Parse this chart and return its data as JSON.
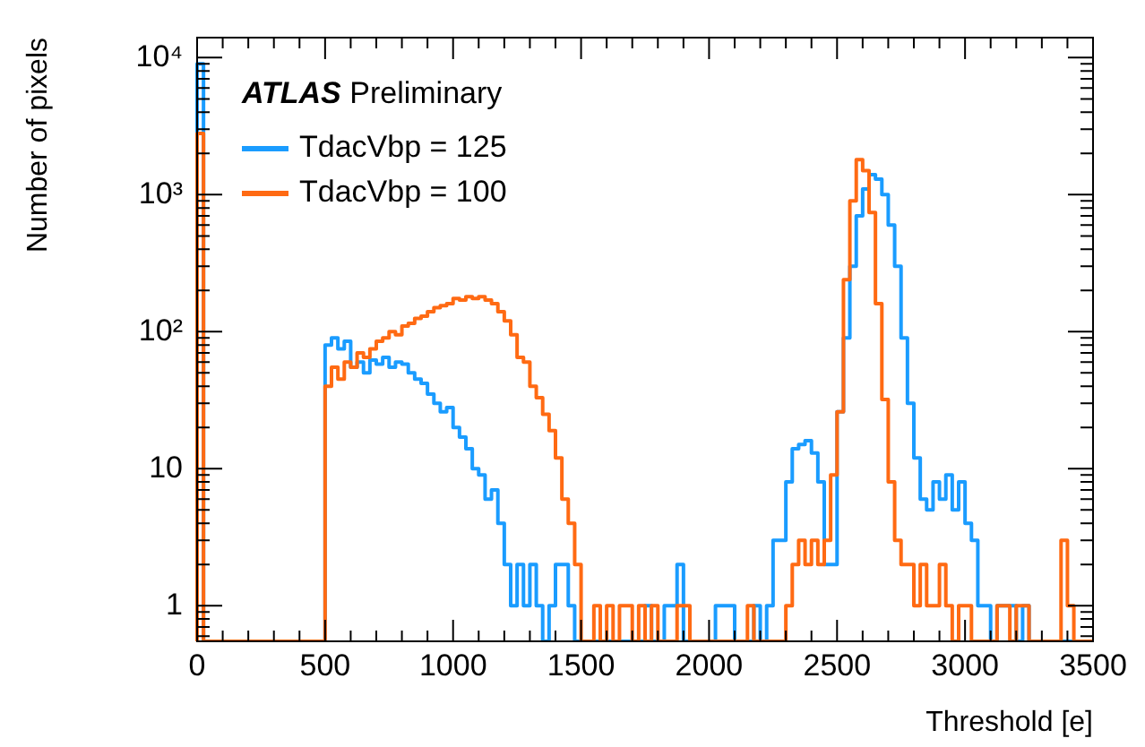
{
  "chart_data": {
    "type": "histogram",
    "xlabel": "Threshold [e]",
    "ylabel": "Number of pixels",
    "annotations": [
      "ATLAS Preliminary"
    ],
    "bins": [
      0,
      25,
      50,
      75,
      100,
      125,
      150,
      175,
      200,
      225,
      250,
      275,
      300,
      325,
      350,
      375,
      400,
      425,
      450,
      475,
      500,
      525,
      550,
      575,
      600,
      625,
      650,
      675,
      700,
      725,
      750,
      775,
      800,
      825,
      850,
      875,
      900,
      925,
      950,
      975,
      1000,
      1025,
      1050,
      1075,
      1100,
      1125,
      1150,
      1175,
      1200,
      1225,
      1250,
      1275,
      1300,
      1325,
      1350,
      1375,
      1400,
      1425,
      1450,
      1475,
      1500,
      1525,
      1550,
      1575,
      1600,
      1625,
      1650,
      1675,
      1700,
      1725,
      1750,
      1775,
      1800,
      1825,
      1850,
      1875,
      1900,
      1925,
      1950,
      1975,
      2000,
      2025,
      2050,
      2075,
      2100,
      2125,
      2150,
      2175,
      2200,
      2225,
      2250,
      2275,
      2300,
      2325,
      2350,
      2375,
      2400,
      2425,
      2450,
      2475,
      2500,
      2525,
      2550,
      2575,
      2600,
      2625,
      2650,
      2675,
      2700,
      2725,
      2750,
      2775,
      2800,
      2825,
      2850,
      2875,
      2900,
      2925,
      2950,
      2975,
      3000,
      3025,
      3050,
      3075,
      3100,
      3125,
      3150,
      3175,
      3200,
      3225,
      3250,
      3275,
      3300,
      3325,
      3350,
      3375,
      3400,
      3425,
      3450,
      3475,
      3500
    ],
    "series": [
      {
        "name": "TdacVbp = 125",
        "color": "#1a9cff",
        "values": [
          9000,
          null,
          null,
          null,
          null,
          null,
          null,
          null,
          null,
          null,
          null,
          null,
          null,
          null,
          null,
          null,
          null,
          null,
          null,
          null,
          80,
          90,
          75,
          85,
          55,
          60,
          50,
          62,
          58,
          65,
          55,
          60,
          58,
          50,
          45,
          42,
          35,
          30,
          26,
          28,
          20,
          17,
          14,
          10,
          9,
          6,
          7,
          4,
          2,
          1,
          2,
          1,
          2,
          1,
          null,
          1,
          2,
          2,
          1,
          null,
          null,
          null,
          null,
          null,
          null,
          null,
          null,
          null,
          null,
          null,
          1,
          null,
          null,
          1,
          1,
          2,
          null,
          null,
          null,
          null,
          null,
          1,
          1,
          1,
          null,
          null,
          null,
          1,
          null,
          1,
          3,
          3,
          8,
          14,
          15,
          16,
          13,
          8,
          2,
          2,
          26,
          90,
          300,
          700,
          1100,
          1400,
          1300,
          1000,
          600,
          300,
          90,
          30,
          12,
          6,
          5,
          8,
          6,
          9,
          5,
          8,
          4,
          3,
          1,
          1,
          null,
          1,
          1,
          1,
          null,
          1,
          null,
          null,
          null,
          null,
          null,
          null,
          null,
          null,
          null,
          null
        ]
      },
      {
        "name": "TdacVbp = 100",
        "color": "#ff6a13",
        "values": [
          2800,
          null,
          null,
          null,
          null,
          null,
          null,
          null,
          null,
          null,
          null,
          null,
          null,
          null,
          null,
          null,
          null,
          null,
          null,
          null,
          40,
          55,
          45,
          60,
          55,
          70,
          65,
          75,
          85,
          90,
          100,
          95,
          110,
          115,
          125,
          130,
          140,
          150,
          155,
          160,
          175,
          170,
          180,
          175,
          180,
          170,
          160,
          140,
          120,
          95,
          65,
          60,
          40,
          33,
          25,
          19,
          12,
          6,
          4,
          2,
          null,
          null,
          1,
          null,
          1,
          null,
          1,
          1,
          null,
          1,
          null,
          1,
          null,
          null,
          null,
          1,
          1,
          null,
          null,
          null,
          null,
          null,
          null,
          null,
          null,
          null,
          1,
          null,
          null,
          null,
          null,
          null,
          1,
          2,
          3,
          2,
          3,
          2,
          3,
          9,
          26,
          240,
          900,
          1800,
          1500,
          740,
          160,
          32,
          8,
          3,
          2,
          2,
          1,
          2,
          1,
          1,
          2,
          1,
          null,
          1,
          1,
          null,
          null,
          null,
          null,
          1,
          1,
          null,
          1,
          1,
          null,
          null,
          null,
          null,
          null,
          3,
          1,
          null,
          null,
          null
        ]
      }
    ],
    "log": "y",
    "xlim": [
      0,
      3500
    ],
    "ylim": [
      0.55,
      14000
    ],
    "xticks": [
      0,
      {
        "value": 100,
        "label": null
      },
      {
        "value": 200,
        "label": null
      },
      {
        "value": 300,
        "label": null
      },
      {
        "value": 400,
        "label": null
      },
      500,
      {
        "value": 600,
        "label": null
      },
      {
        "value": 700,
        "label": null
      },
      {
        "value": 800,
        "label": null
      },
      {
        "value": 900,
        "label": null
      },
      1000,
      {
        "value": 1100,
        "label": null
      },
      {
        "value": 1200,
        "label": null
      },
      {
        "value": 1300,
        "label": null
      },
      {
        "value": 1400,
        "label": null
      },
      1500,
      {
        "value": 1600,
        "label": null
      },
      {
        "value": 1700,
        "label": null
      },
      {
        "value": 1800,
        "label": null
      },
      {
        "value": 1900,
        "label": null
      },
      2000,
      {
        "value": 2100,
        "label": null
      },
      {
        "value": 2200,
        "label": null
      },
      {
        "value": 2300,
        "label": null
      },
      {
        "value": 2400,
        "label": null
      },
      2500,
      {
        "value": 2600,
        "label": null
      },
      {
        "value": 2700,
        "label": null
      },
      {
        "value": 2800,
        "label": null
      },
      {
        "value": 2900,
        "label": null
      },
      3000,
      {
        "value": 3100,
        "label": null
      },
      {
        "value": 3200,
        "label": null
      },
      {
        "value": 3300,
        "label": null
      },
      {
        "value": 3400,
        "label": null
      },
      3500
    ],
    "yticks": [
      {
        "value": 0.6,
        "label": null
      },
      {
        "value": 0.7,
        "label": null
      },
      {
        "value": 0.8,
        "label": null
      },
      {
        "value": 0.9,
        "label": null
      },
      1,
      {
        "value": 2,
        "label": null
      },
      {
        "value": 3,
        "label": null
      },
      {
        "value": 4,
        "label": null
      },
      {
        "value": 5,
        "label": null
      },
      {
        "value": 6,
        "label": null
      },
      {
        "value": 7,
        "label": null
      },
      {
        "value": 8,
        "label": null
      },
      {
        "value": 9,
        "label": null
      },
      10,
      {
        "value": 20,
        "label": null
      },
      {
        "value": 30,
        "label": null
      },
      {
        "value": 40,
        "label": null
      },
      {
        "value": 50,
        "label": null
      },
      {
        "value": 60,
        "label": null
      },
      {
        "value": 70,
        "label": null
      },
      {
        "value": 80,
        "label": null
      },
      {
        "value": 90,
        "label": null
      },
      {
        "value": 100,
        "label": "10²"
      },
      {
        "value": 200,
        "label": null
      },
      {
        "value": 300,
        "label": null
      },
      {
        "value": 400,
        "label": null
      },
      {
        "value": 500,
        "label": null
      },
      {
        "value": 600,
        "label": null
      },
      {
        "value": 700,
        "label": null
      },
      {
        "value": 800,
        "label": null
      },
      {
        "value": 900,
        "label": null
      },
      {
        "value": 1000,
        "label": "10³"
      },
      {
        "value": 2000,
        "label": null
      },
      {
        "value": 3000,
        "label": null
      },
      {
        "value": 4000,
        "label": null
      },
      {
        "value": 5000,
        "label": null
      },
      {
        "value": 6000,
        "label": null
      },
      {
        "value": 7000,
        "label": null
      },
      {
        "value": 8000,
        "label": null
      },
      {
        "value": 9000,
        "label": null
      },
      {
        "value": 10000,
        "label": "10⁴"
      }
    ],
    "legend": "top left",
    "grid": false
  }
}
